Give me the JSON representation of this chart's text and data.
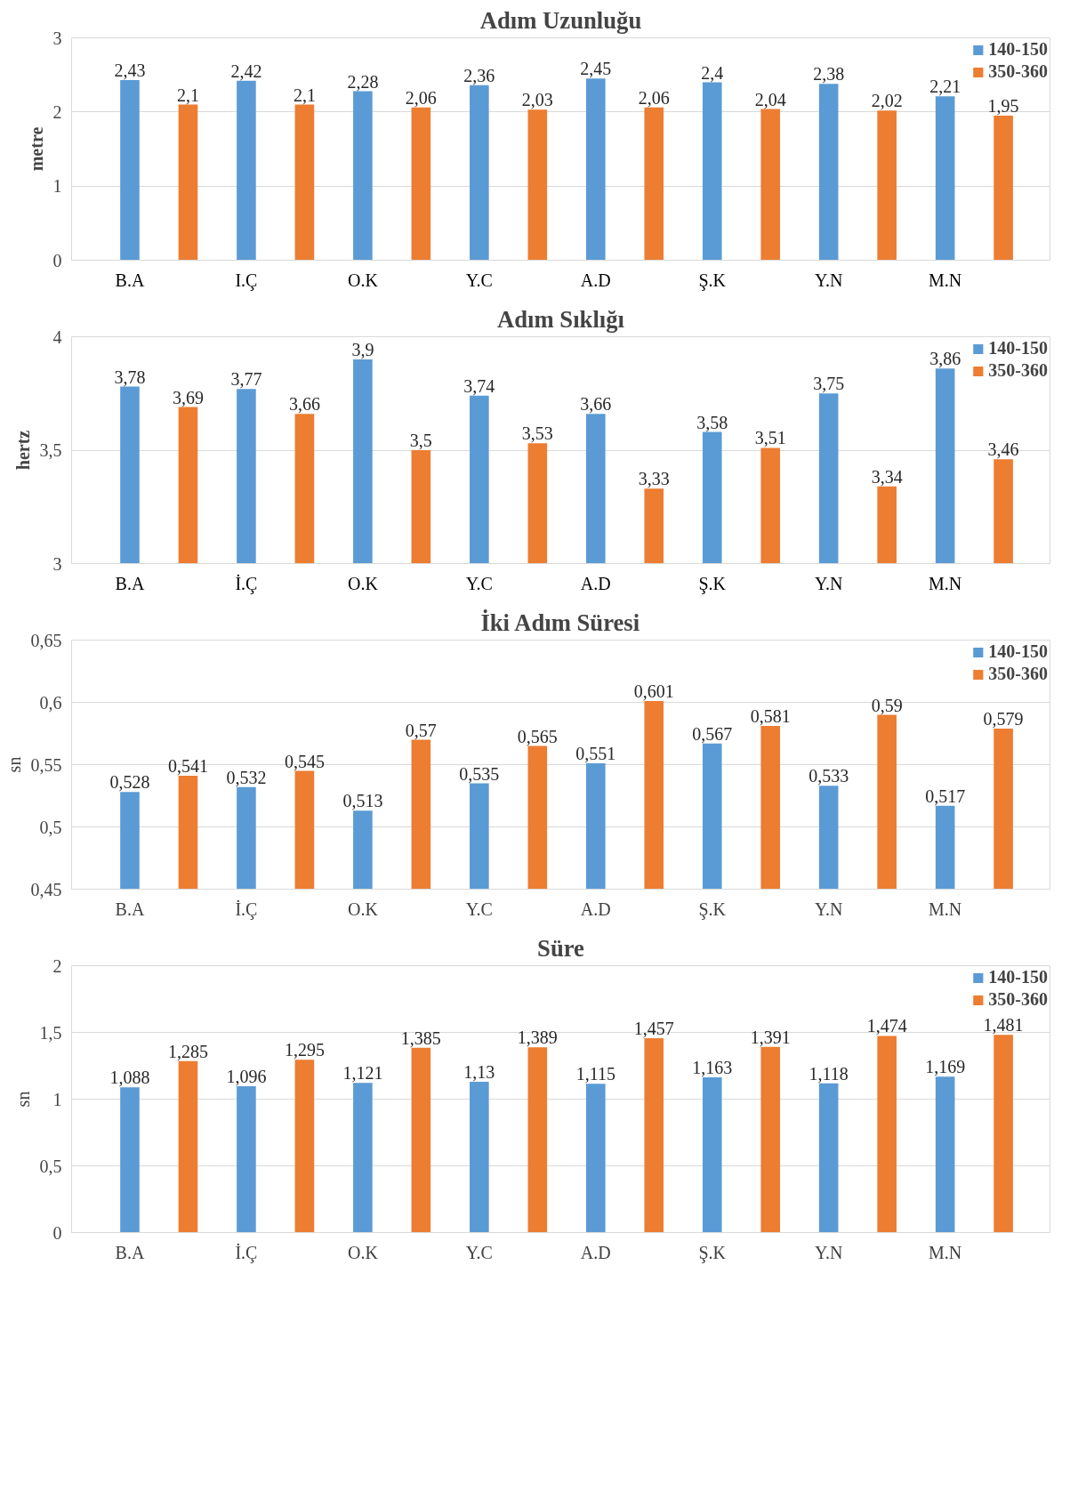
{
  "chart_data": [
    {
      "type": "bar",
      "title": "Adım Uzunluğu",
      "ylabel": "metre",
      "categories": [
        "B.A",
        "I.Ç",
        "O.K",
        "Y.C",
        "A.D",
        "Ş.K",
        "Y.N",
        "M.N"
      ],
      "series": [
        {
          "name": "140-150",
          "color": "#5b9bd5",
          "values": [
            2.43,
            2.42,
            2.28,
            2.36,
            2.45,
            2.4,
            2.38,
            2.21
          ],
          "value_labels": [
            "2,43",
            "2,42",
            "2,28",
            "2,36",
            "2,45",
            "2,4",
            "2,38",
            "2,21"
          ]
        },
        {
          "name": "350-360",
          "color": "#ed7d31",
          "values": [
            2.1,
            2.1,
            2.06,
            2.03,
            2.06,
            2.04,
            2.02,
            1.95
          ],
          "value_labels": [
            "2,1",
            "2,1",
            "2,06",
            "2,03",
            "2,06",
            "2,04",
            "2,02",
            "1,95"
          ]
        }
      ],
      "ylim": [
        0,
        3
      ],
      "yticks": [
        0,
        1,
        2,
        3
      ],
      "grid": "y",
      "legend": "top right"
    },
    {
      "type": "bar",
      "title": "Adım Sıklığı",
      "ylabel": "hertz",
      "categories": [
        "B.A",
        "İ.Ç",
        "O.K",
        "Y.C",
        "A.D",
        "Ş.K",
        "Y.N",
        "M.N"
      ],
      "series": [
        {
          "name": "140-150",
          "color": "#5b9bd5",
          "values": [
            3.78,
            3.77,
            3.9,
            3.74,
            3.66,
            3.58,
            3.75,
            3.86
          ],
          "value_labels": [
            "3,78",
            "3,77",
            "3,9",
            "3,74",
            "3,66",
            "3,58",
            "3,75",
            "3,86"
          ]
        },
        {
          "name": "350-360",
          "color": "#ed7d31",
          "values": [
            3.69,
            3.66,
            3.5,
            3.53,
            3.33,
            3.51,
            3.34,
            3.46
          ],
          "value_labels": [
            "3,69",
            "3,66",
            "3,5",
            "3,53",
            "3,33",
            "3,51",
            "3,34",
            "3,46"
          ]
        }
      ],
      "ylim": [
        3,
        4
      ],
      "yticks": [
        3,
        {
          "value": 3.5,
          "label": "3,5"
        },
        4
      ],
      "grid": "y",
      "legend": "top right"
    },
    {
      "type": "bar",
      "title": "İki Adım Süresi",
      "ylabel": "sn",
      "categories": [
        "B.A",
        "İ.Ç",
        "O.K",
        "Y.C",
        "A.D",
        "Ş.K",
        "Y.N",
        "M.N"
      ],
      "series": [
        {
          "name": "140-150",
          "color": "#5b9bd5",
          "values": [
            0.528,
            0.532,
            0.513,
            0.535,
            0.551,
            0.567,
            0.533,
            0.517
          ],
          "value_labels": [
            "0,528",
            "0,532",
            "0,513",
            "0,535",
            "0,551",
            "0,567",
            "0,533",
            "0,517"
          ]
        },
        {
          "name": "350-360",
          "color": "#ed7d31",
          "values": [
            0.541,
            0.545,
            0.57,
            0.565,
            0.601,
            0.581,
            0.59,
            0.579
          ],
          "value_labels": [
            "0,541",
            "0,545",
            "0,57",
            "0,565",
            "0,601",
            "0,581",
            "0,59",
            "0,579"
          ]
        }
      ],
      "ylim": [
        0.45,
        0.65
      ],
      "yticks": [
        {
          "value": 0.45,
          "label": "0,45"
        },
        {
          "value": 0.5,
          "label": "0,5"
        },
        {
          "value": 0.55,
          "label": "0,55"
        },
        {
          "value": 0.6,
          "label": "0,6"
        },
        {
          "value": 0.65,
          "label": "0,65"
        }
      ],
      "grid": "y",
      "legend": "top right"
    },
    {
      "type": "bar",
      "title": "Süre",
      "ylabel": "sn",
      "categories": [
        "B.A",
        "İ.Ç",
        "O.K",
        "Y.C",
        "A.D",
        "Ş.K",
        "Y.N",
        "M.N"
      ],
      "series": [
        {
          "name": "140-150",
          "color": "#5b9bd5",
          "values": [
            1.088,
            1.096,
            1.121,
            1.13,
            1.115,
            1.163,
            1.118,
            1.169
          ],
          "value_labels": [
            "1,088",
            "1,096",
            "1,121",
            "1,13",
            "1,115",
            "1,163",
            "1,118",
            "1,169"
          ]
        },
        {
          "name": "350-360",
          "color": "#ed7d31",
          "values": [
            1.285,
            1.295,
            1.385,
            1.389,
            1.457,
            1.391,
            1.474,
            1.481
          ],
          "value_labels": [
            "1,285",
            "1,295",
            "1,385",
            "1,389",
            "1,457",
            "1,391",
            "1,474",
            "1,481"
          ]
        }
      ],
      "ylim": [
        0,
        2
      ],
      "yticks": [
        0,
        {
          "value": 0.5,
          "label": "0,5"
        },
        1,
        {
          "value": 1.5,
          "label": "1,5"
        },
        2
      ],
      "grid": "y",
      "legend": "top right"
    }
  ]
}
